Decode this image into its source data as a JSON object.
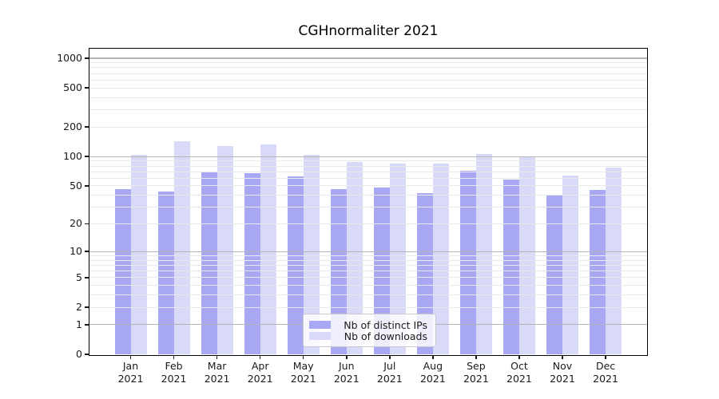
{
  "chart_data": {
    "type": "bar",
    "title": "CGHnormaliter 2021",
    "months": [
      "Jan",
      "Feb",
      "Mar",
      "Apr",
      "May",
      "Jun",
      "Jul",
      "Aug",
      "Sep",
      "Oct",
      "Nov",
      "Dec"
    ],
    "year": "2021",
    "series": [
      {
        "name": "Nb of distinct IPs",
        "color": "#a8a8f5",
        "values": [
          46,
          44,
          70,
          67,
          63,
          46,
          48,
          42,
          71,
          58,
          40,
          45
        ]
      },
      {
        "name": "Nb of downloads",
        "color": "#d9d9f8",
        "values": [
          105,
          142,
          127,
          132,
          105,
          88,
          84,
          85,
          107,
          99,
          64,
          77
        ]
      }
    ],
    "yscale": "log10(1+v)",
    "ylim": [
      0,
      1250
    ],
    "yticks": [
      0,
      1,
      2,
      5,
      10,
      20,
      50,
      100,
      200,
      500,
      1000
    ],
    "grid_major_values": [
      1,
      10,
      100,
      1000
    ],
    "grid_minor_values": [
      2,
      3,
      4,
      5,
      6,
      7,
      8,
      9,
      20,
      30,
      40,
      50,
      60,
      70,
      80,
      90,
      200,
      300,
      400,
      500,
      600,
      700,
      800,
      900
    ],
    "grid_on": true,
    "legend_position": "lower center",
    "colors": {
      "background": "#ffffff",
      "grid_major": "#b5b5b5",
      "grid_minor": "#e9e9e9",
      "axis": "#000000",
      "text": "#1a1a1a"
    }
  }
}
